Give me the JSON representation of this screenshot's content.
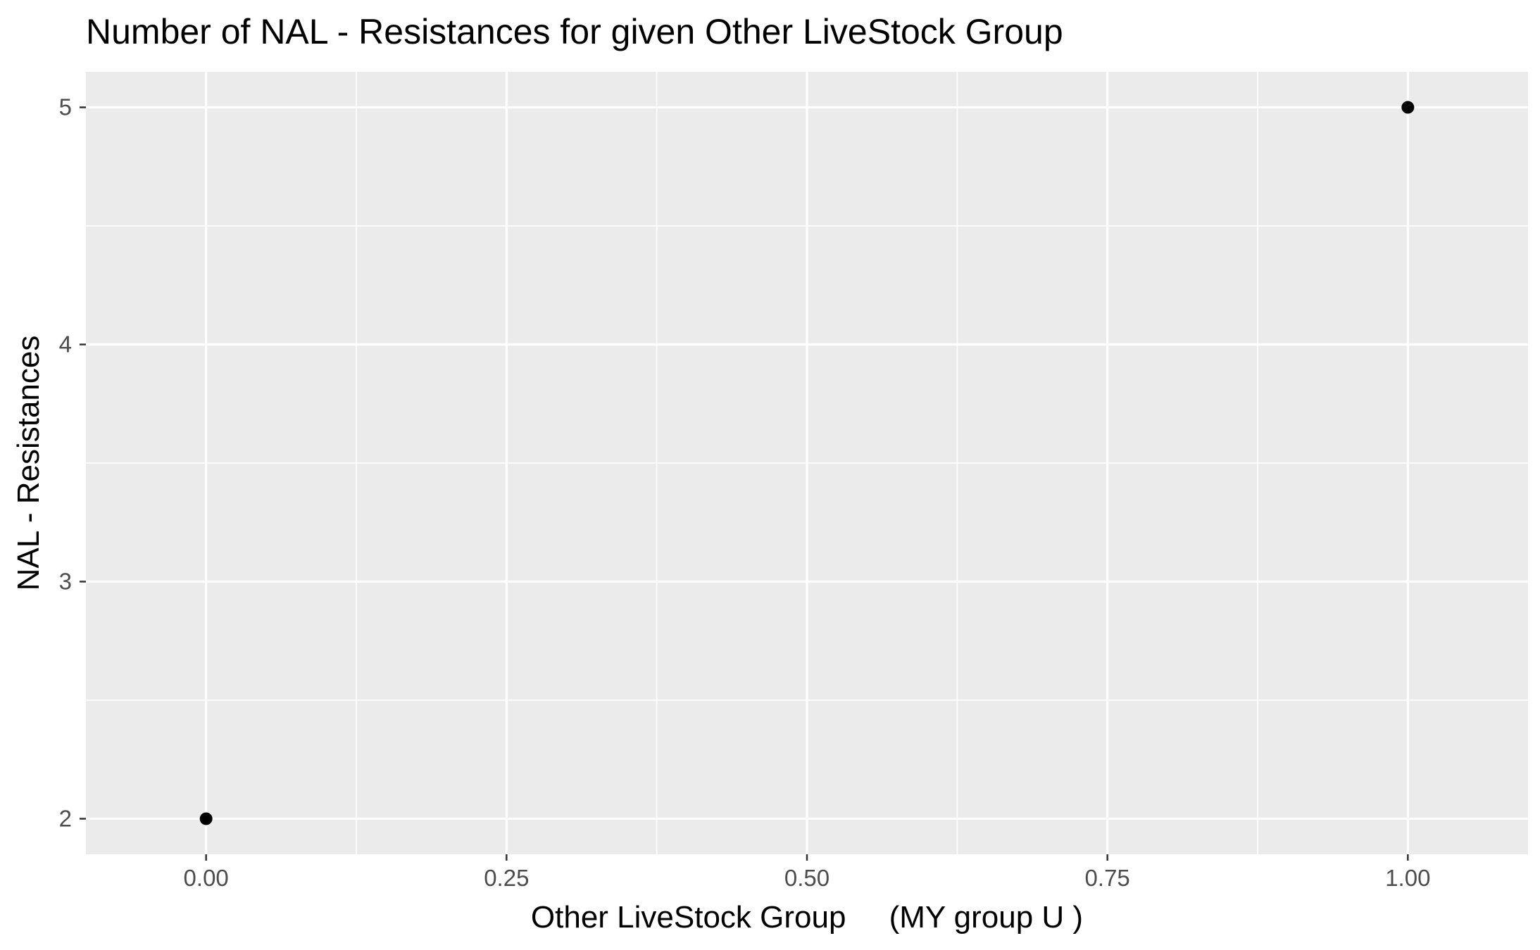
{
  "chart_data": {
    "type": "scatter",
    "title": "Number of NAL - Resistances for given Other LiveStock Group",
    "xlabel": "Other LiveStock Group     (MY group U )",
    "ylabel": "NAL - Resistances",
    "xlim": [
      -0.1,
      1.1
    ],
    "ylim": [
      1.85,
      5.15
    ],
    "x_ticks": [
      0,
      0.25,
      0.5,
      0.75,
      1
    ],
    "x_tick_labels": [
      "0.00",
      "0.25",
      "0.50",
      "0.75",
      "1.00"
    ],
    "y_ticks": [
      2,
      3,
      4,
      5
    ],
    "y_tick_labels": [
      "2",
      "3",
      "4",
      "5"
    ],
    "grid": true,
    "legend": "none",
    "points": [
      {
        "x": 0,
        "y": 2
      },
      {
        "x": 1,
        "y": 5
      }
    ]
  },
  "colors": {
    "panel_background": "#ebebeb",
    "grid_line": "#ffffff",
    "point": "#000000",
    "tick_text": "#4d4d4d",
    "tick_mark": "#333333"
  }
}
